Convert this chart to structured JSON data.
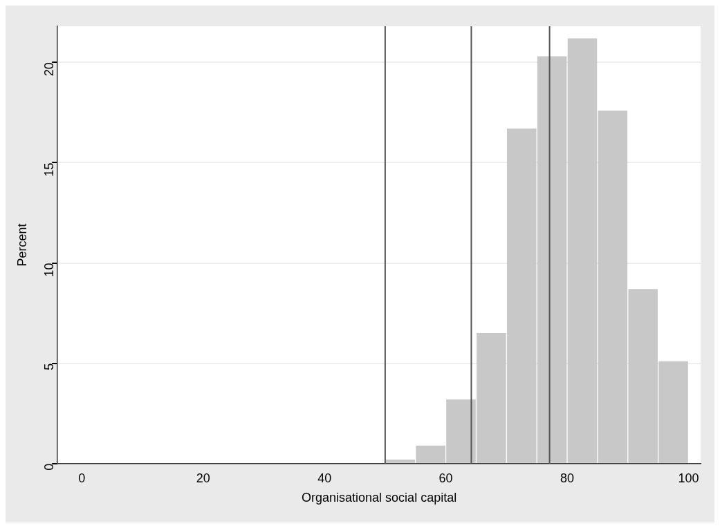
{
  "chart_data": {
    "type": "histogram",
    "xlabel": "Organisational social capital",
    "ylabel": "Percent",
    "bins": [
      50,
      55,
      60,
      65,
      70,
      75,
      80,
      85,
      90,
      95,
      100
    ],
    "values": [
      0.2,
      0.9,
      3.2,
      6.5,
      16.7,
      20.3,
      21.2,
      17.6,
      8.7,
      5.1
    ],
    "color": "#c8c8c8",
    "xlim": [
      -4,
      102
    ],
    "xticks": [
      0,
      20,
      40,
      60,
      80,
      100
    ],
    "ylim": [
      0,
      21.8
    ],
    "yticks": [
      0,
      5,
      10,
      15,
      20
    ],
    "grid": "y",
    "ref_lines": [
      {
        "axis": "x",
        "value": 50,
        "color": "#555555"
      },
      {
        "axis": "x",
        "value": 64.2,
        "color": "#555555"
      },
      {
        "axis": "x",
        "value": 77.1,
        "color": "#555555"
      }
    ]
  }
}
